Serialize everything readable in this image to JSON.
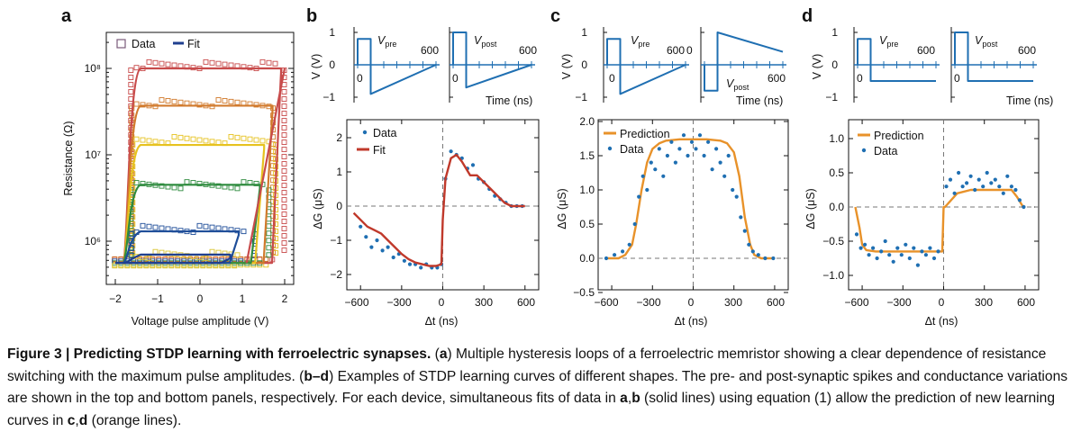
{
  "figure": {
    "panel_labels": [
      "a",
      "b",
      "c",
      "d"
    ],
    "colors": {
      "blue": "#1f6fb2",
      "red": "#c0392b",
      "orange": "#e8922a",
      "loop_colors": [
        "#c84b4b",
        "#d17a2c",
        "#e6c21f",
        "#2e8b3e",
        "#1f4e99",
        "#d9c431"
      ],
      "panel_a_fit_color": "#1f3f8f",
      "dashed": "#777777",
      "axis": "#111111"
    },
    "panel_a": {
      "legend": {
        "data": "Data",
        "fit": "Fit"
      },
      "xlabel": "Voltage pulse amplitude (V)",
      "ylabel": "Resistance (Ω)",
      "xticks": [
        "−2",
        "−1",
        "0",
        "1",
        "2"
      ],
      "yticks": [
        "10⁶",
        "10⁷",
        "10⁸"
      ]
    },
    "spikes": {
      "yticks": [
        "1",
        "0",
        "−1"
      ],
      "ylabel": "V (V)",
      "time_label": "Time (ns)",
      "v_pre": "V",
      "v_pre_sub": "pre",
      "v_post": "V",
      "v_post_sub": "post",
      "zero_label": "0",
      "end_label": "600"
    },
    "panel_b": {
      "legend": {
        "data": "Data",
        "fit": "Fit"
      },
      "xlabel": "Δt (ns)",
      "ylabel": "ΔG (μS)",
      "xticks": [
        "−600",
        "−300",
        "0",
        "300",
        "600"
      ],
      "yticks": [
        "2",
        "1",
        "0",
        "−1",
        "−2"
      ]
    },
    "panel_c": {
      "legend": {
        "prediction": "Prediction",
        "data": "Data"
      },
      "xlabel": "Δt (ns)",
      "ylabel": "ΔG (μS)",
      "xticks": [
        "−600",
        "−300",
        "0",
        "300",
        "600"
      ],
      "yticks": [
        "2.0",
        "1.5",
        "1.0",
        "0.5",
        "0.0",
        "−0.5"
      ]
    },
    "panel_d": {
      "legend": {
        "prediction": "Prediction",
        "data": "Data"
      },
      "xlabel": "Δt (ns)",
      "ylabel": "ΔG (μS)",
      "xticks": [
        "−600",
        "−300",
        "0",
        "300",
        "600"
      ],
      "yticks": [
        "1.0",
        "0.5",
        "0.0",
        "−0.5",
        "−1.0"
      ]
    }
  },
  "chart_data": [
    {
      "type": "scatter",
      "panel": "a",
      "xlabel": "Voltage pulse amplitude (V)",
      "ylabel": "Resistance (Ω)",
      "y_scale": "log",
      "xlim": [
        -2.2,
        2.2
      ],
      "ylim": [
        300000,
        300000000
      ],
      "grid": false,
      "legend_position": "top-left",
      "series": [
        {
          "name": "Data",
          "hysteresis_loops": [
            {
              "x_min": -2.1,
              "x_max": 2.0,
              "R_high": 110000000,
              "R_low": 600000
            },
            {
              "x_min": -2.1,
              "x_max": 1.8,
              "R_high": 40000000,
              "R_low": 580000
            },
            {
              "x_min": -2.1,
              "x_max": 1.8,
              "R_high": 15000000,
              "R_low": 560000
            },
            {
              "x_min": -2.1,
              "x_max": 1.7,
              "R_high": 4500000,
              "R_low": 560000
            },
            {
              "x_min": -2.1,
              "x_max": 1.3,
              "R_high": 1400000,
              "R_low": 560000
            },
            {
              "x_min": -2.1,
              "x_max": 1.1,
              "R_high": 700000,
              "R_low": 560000
            }
          ]
        },
        {
          "name": "Fit",
          "hysteresis_loops": [
            {
              "x_min": -2.0,
              "x_max": 2.0,
              "R_high": 100000000,
              "R_low": 560000
            },
            {
              "x_min": -2.0,
              "x_max": 1.8,
              "R_high": 37000000,
              "R_low": 560000
            },
            {
              "x_min": -2.0,
              "x_max": 1.6,
              "R_high": 13000000,
              "R_low": 560000
            },
            {
              "x_min": -2.0,
              "x_max": 1.5,
              "R_high": 4500000,
              "R_low": 560000
            },
            {
              "x_min": -2.0,
              "x_max": 1.0,
              "R_high": 1300000,
              "R_low": 560000
            },
            {
              "x_min": -2.0,
              "x_max": 0.8,
              "R_high": 700000,
              "R_low": 560000
            }
          ]
        }
      ]
    },
    {
      "type": "line",
      "panel": "b-spikes",
      "x_label": "Time (ns)",
      "ylabel": "V (V)",
      "ylim": [
        -1,
        1
      ],
      "series": [
        {
          "name": "V",
          "subscript": "pre",
          "x": [
            0,
            0,
            100,
            100,
            600
          ],
          "y": [
            0,
            0.8,
            0.8,
            -0.9,
            0
          ]
        },
        {
          "name": "V",
          "subscript": "post",
          "x": [
            0,
            0,
            100,
            100,
            600
          ],
          "y": [
            0,
            1.0,
            1.0,
            -0.7,
            0
          ]
        }
      ]
    },
    {
      "type": "scatter",
      "panel": "b",
      "xlabel": "Δt (ns)",
      "ylabel": "ΔG (μS)",
      "xlim": [
        -700,
        700
      ],
      "ylim": [
        -2.4,
        2.4
      ],
      "legend_position": "top-left",
      "series": [
        {
          "name": "Data",
          "x": [
            -600,
            -560,
            -520,
            -480,
            -440,
            -400,
            -360,
            -320,
            -280,
            -240,
            -200,
            -160,
            -120,
            -80,
            -40,
            -10,
            20,
            60,
            100,
            140,
            180,
            220,
            260,
            300,
            340,
            380,
            420,
            460,
            500,
            540,
            580
          ],
          "y": [
            -0.6,
            -0.9,
            -1.2,
            -1.0,
            -1.3,
            -1.2,
            -1.5,
            -1.4,
            -1.6,
            -1.7,
            -1.7,
            -1.8,
            -1.7,
            -1.8,
            -1.8,
            -1.7,
            0.8,
            1.6,
            1.5,
            1.4,
            1.1,
            1.2,
            0.8,
            0.7,
            0.5,
            0.3,
            0.2,
            0.1,
            0.0,
            0.0,
            0.0
          ]
        },
        {
          "name": "Fit",
          "x": [
            -650,
            -600,
            -550,
            -500,
            -450,
            -400,
            -350,
            -300,
            -250,
            -200,
            -150,
            -100,
            -50,
            -10,
            0,
            20,
            60,
            100,
            140,
            200,
            250,
            300,
            350,
            400,
            450,
            500,
            550,
            600
          ],
          "y": [
            -0.2,
            -0.4,
            -0.6,
            -0.7,
            -0.8,
            -1.0,
            -1.2,
            -1.4,
            -1.55,
            -1.65,
            -1.7,
            -1.75,
            -1.75,
            -1.7,
            -0.4,
            0.8,
            1.4,
            1.5,
            1.3,
            0.9,
            0.9,
            0.7,
            0.5,
            0.3,
            0.1,
            0.0,
            0.0,
            0.0
          ]
        }
      ]
    },
    {
      "type": "line",
      "panel": "c-spikes",
      "x_label": "Time (ns)",
      "ylabel": "V (V)",
      "ylim": [
        -1,
        1
      ],
      "series": [
        {
          "name": "V",
          "subscript": "pre",
          "x": [
            0,
            0,
            100,
            100,
            600
          ],
          "y": [
            0,
            0.8,
            0.8,
            -0.9,
            0
          ]
        },
        {
          "name": "V",
          "subscript": "post",
          "x": [
            0,
            0,
            100,
            100,
            600
          ],
          "y": [
            0,
            -0.8,
            -0.8,
            1.0,
            0.4
          ]
        }
      ]
    },
    {
      "type": "scatter",
      "panel": "c",
      "xlabel": "Δt (ns)",
      "ylabel": "ΔG (μS)",
      "xlim": [
        -700,
        700
      ],
      "ylim": [
        -0.5,
        2.0
      ],
      "legend_position": "top-left",
      "series": [
        {
          "name": "Prediction",
          "x": [
            -650,
            -600,
            -550,
            -500,
            -450,
            -420,
            -380,
            -340,
            -300,
            -250,
            -200,
            -100,
            0,
            100,
            200,
            250,
            300,
            340,
            380,
            420,
            450,
            500,
            550,
            600
          ],
          "y": [
            0.0,
            0.0,
            0.0,
            0.05,
            0.2,
            0.5,
            1.0,
            1.4,
            1.6,
            1.68,
            1.72,
            1.74,
            1.74,
            1.74,
            1.72,
            1.68,
            1.55,
            1.2,
            0.6,
            0.2,
            0.05,
            0.0,
            0.0,
            0.0
          ]
        },
        {
          "name": "Data",
          "x": [
            -640,
            -580,
            -520,
            -470,
            -430,
            -400,
            -370,
            -340,
            -310,
            -280,
            -250,
            -220,
            -190,
            -160,
            -130,
            -100,
            -70,
            -40,
            -10,
            20,
            50,
            80,
            110,
            140,
            170,
            200,
            230,
            260,
            290,
            320,
            350,
            380,
            410,
            440,
            480,
            530,
            590
          ],
          "y": [
            0.0,
            0.05,
            0.1,
            0.2,
            0.5,
            0.9,
            1.2,
            1.0,
            1.4,
            1.3,
            1.6,
            1.2,
            1.5,
            1.7,
            1.4,
            1.6,
            1.8,
            1.5,
            1.7,
            1.6,
            1.8,
            1.5,
            1.7,
            1.3,
            1.6,
            1.4,
            1.2,
            1.5,
            1.0,
            0.9,
            0.6,
            0.4,
            0.2,
            0.1,
            0.05,
            0.0,
            0.0
          ]
        }
      ]
    },
    {
      "type": "line",
      "panel": "d-spikes",
      "x_label": "Time (ns)",
      "ylabel": "V (V)",
      "ylim": [
        -1,
        1
      ],
      "series": [
        {
          "name": "V",
          "subscript": "pre",
          "x": [
            0,
            0,
            100,
            100,
            600
          ],
          "y": [
            0,
            0.8,
            0.8,
            -0.5,
            -0.5
          ]
        },
        {
          "name": "V",
          "subscript": "post",
          "x": [
            0,
            0,
            100,
            100,
            600
          ],
          "y": [
            0,
            1.0,
            1.0,
            -0.5,
            -0.5
          ]
        }
      ]
    },
    {
      "type": "scatter",
      "panel": "d",
      "xlabel": "Δt (ns)",
      "ylabel": "ΔG (μS)",
      "xlim": [
        -700,
        700
      ],
      "ylim": [
        -1.2,
        1.2
      ],
      "legend_position": "top-left",
      "series": [
        {
          "name": "Prediction",
          "x": [
            -650,
            -620,
            -600,
            -570,
            -500,
            -400,
            -300,
            -200,
            -100,
            -10,
            0,
            10,
            100,
            200,
            300,
            400,
            500,
            540,
            580,
            600
          ],
          "y": [
            0.0,
            -0.3,
            -0.55,
            -0.63,
            -0.65,
            -0.65,
            -0.65,
            -0.65,
            -0.65,
            -0.65,
            0.0,
            0.0,
            0.2,
            0.25,
            0.25,
            0.25,
            0.25,
            0.15,
            0.02,
            0.0
          ]
        },
        {
          "name": "Data",
          "x": [
            -640,
            -610,
            -580,
            -550,
            -520,
            -490,
            -460,
            -430,
            -400,
            -370,
            -340,
            -310,
            -280,
            -250,
            -220,
            -190,
            -160,
            -130,
            -100,
            -70,
            -40,
            20,
            50,
            80,
            110,
            140,
            170,
            200,
            230,
            260,
            290,
            320,
            350,
            380,
            410,
            440,
            470,
            500,
            530,
            560,
            590
          ],
          "y": [
            -0.4,
            -0.6,
            -0.55,
            -0.7,
            -0.6,
            -0.75,
            -0.65,
            -0.5,
            -0.7,
            -0.8,
            -0.6,
            -0.7,
            -0.55,
            -0.75,
            -0.6,
            -0.85,
            -0.65,
            -0.7,
            -0.6,
            -0.75,
            -0.65,
            0.3,
            0.4,
            0.2,
            0.5,
            0.3,
            0.35,
            0.45,
            0.25,
            0.4,
            0.3,
            0.5,
            0.35,
            0.4,
            0.3,
            0.2,
            0.45,
            0.3,
            0.25,
            0.1,
            0.0
          ]
        }
      ]
    }
  ],
  "caption": {
    "title": "Figure 3 | Predicting STDP learning with ferroelectric synapses.",
    "part1_open": " (",
    "label_a": "a",
    "part1_text": ") Multiple hysteresis loops of a ferroelectric memristor showing a clear dependence of resistance switching with the maximum pulse amplitudes. (",
    "label_bd": "b–d",
    "part2_text": ") Examples of STDP learning curves of different shapes. The pre- and post-synaptic spikes and conductance variations are shown in the top and bottom panels, respectively. For each device, simultaneous fits of data in ",
    "label_ab": "a",
    "comma1": ",",
    "label_b": "b",
    "part3_text": " (solid lines) using equation (1) allow the prediction of new learning curves in ",
    "label_c": "c",
    "comma2": ",",
    "label_d": "d",
    "part4_text": " (orange lines)."
  }
}
